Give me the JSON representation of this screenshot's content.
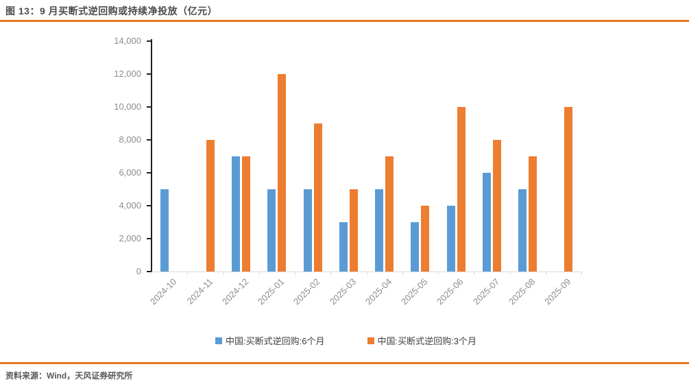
{
  "figure": {
    "title": "图 13：9 月买断式逆回购或持续净投放（亿元）",
    "source": "资料来源：Wind，天风证券研究所"
  },
  "colors": {
    "accent_line": "#E87722",
    "series_6m_blue": "#5B9BD5",
    "series_3m_orange": "#ED7D31",
    "axis_text": "#8C8C8C",
    "x_axis_line": "#D9D9D9",
    "y_axis_line": "#1F1F1F"
  },
  "chart_data": {
    "type": "bar",
    "title": "9 月买断式逆回购或持续净投放（亿元）",
    "categories": [
      "2024-10",
      "2024-11",
      "2024-12",
      "2025-01",
      "2025-02",
      "2025-03",
      "2025-04",
      "2025-05",
      "2025-06",
      "2025-07",
      "2025-08",
      "2025-09"
    ],
    "series": [
      {
        "name": "中国:买断式逆回购:6个月",
        "color": "#5B9BD5",
        "values": [
          5000,
          null,
          7000,
          5000,
          5000,
          3000,
          5000,
          3000,
          4000,
          6000,
          5000,
          null
        ]
      },
      {
        "name": "中国:买断式逆回购:3个月",
        "color": "#ED7D31",
        "values": [
          null,
          8000,
          7000,
          12000,
          9000,
          5000,
          7000,
          4000,
          10000,
          8000,
          7000,
          10000
        ]
      }
    ],
    "xlabel": "",
    "ylabel": "",
    "ylim": [
      0,
      14000
    ],
    "ytick_step": 2000,
    "ytick_labels": [
      "0",
      "2,000",
      "4,000",
      "6,000",
      "8,000",
      "10,000",
      "12,000",
      "14,000"
    ],
    "grid": false,
    "legend_position": "bottom"
  }
}
